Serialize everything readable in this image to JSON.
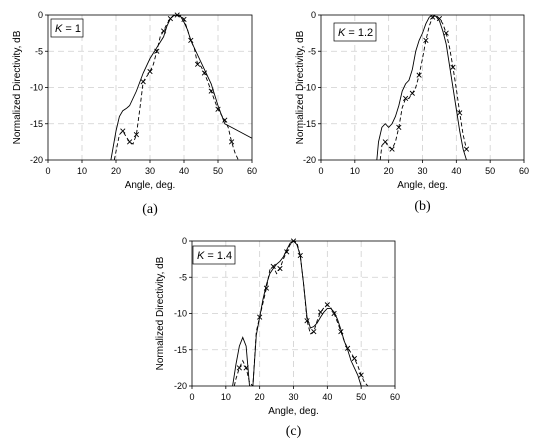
{
  "chart_data": [
    {
      "type": "line",
      "panel_label": "(a)",
      "annotation": {
        "var": "K",
        "rest": " = 1"
      },
      "xlabel": "Angle, deg.",
      "ylabel": "Normalized Directivity, dB",
      "xlim": [
        0,
        60
      ],
      "ylim": [
        -20,
        0
      ],
      "xticks": [
        "0",
        "10",
        "20",
        "30",
        "40",
        "50",
        "60"
      ],
      "yticks": [
        "0",
        "-5",
        "-10",
        "-15",
        "-20"
      ],
      "grid": true,
      "series": [
        {
          "style": "solid",
          "x": [
            18.5,
            20,
            21,
            22,
            23,
            24,
            26,
            28,
            30,
            32,
            34,
            35,
            36,
            37,
            38,
            39,
            40,
            41,
            42,
            43,
            44,
            45,
            46,
            47,
            48,
            49,
            50,
            52,
            54,
            56,
            58,
            60
          ],
          "y": [
            -20,
            -16,
            -14,
            -13.2,
            -12.9,
            -12.5,
            -10.5,
            -8,
            -6,
            -4.5,
            -3,
            -1.5,
            -0.5,
            0,
            -0.1,
            -0.2,
            -1,
            -2,
            -3.5,
            -4.5,
            -5.5,
            -6.5,
            -7.5,
            -8.5,
            -9.5,
            -11,
            -12.5,
            -15,
            -15.5,
            -16,
            -16.5,
            -17
          ]
        },
        {
          "style": "dashed",
          "marker": "x",
          "x": [
            19.5,
            21,
            22,
            23,
            24,
            25,
            26,
            27,
            28,
            29,
            30,
            31,
            32,
            33,
            34,
            35,
            36,
            37,
            38,
            39,
            40,
            41,
            42,
            43,
            44,
            45,
            46,
            47,
            48,
            49,
            50,
            51,
            52,
            53,
            54,
            55,
            56
          ],
          "y": [
            -20,
            -16.5,
            -16,
            -16.8,
            -17.5,
            -17.8,
            -16.5,
            -13,
            -9.2,
            -8.5,
            -7.8,
            -6.8,
            -5,
            -3,
            -2.2,
            -1.2,
            -0.5,
            -0.1,
            0,
            -0.1,
            -0.6,
            -2,
            -3.5,
            -4.5,
            -6.8,
            -7.1,
            -8,
            -9.2,
            -10.5,
            -11.8,
            -13,
            -13.8,
            -14.5,
            -15.5,
            -17.5,
            -19,
            -20
          ]
        }
      ]
    },
    {
      "type": "line",
      "panel_label": "(b)",
      "annotation": {
        "var": "K",
        "rest": " = 1.2"
      },
      "xlabel": "Angle, deg.",
      "ylabel": "Normalized Directivity, dB",
      "xlim": [
        0,
        60
      ],
      "ylim": [
        -20,
        0
      ],
      "xticks": [
        "0",
        "10",
        "20",
        "30",
        "40",
        "50",
        "60"
      ],
      "yticks": [
        "0",
        "-5",
        "-10",
        "-15",
        "-20"
      ],
      "grid": true,
      "series": [
        {
          "style": "solid",
          "x": [
            16.5,
            17,
            18,
            19,
            20,
            21,
            22,
            23,
            24,
            25,
            26,
            27,
            28,
            29,
            30,
            31,
            32,
            33,
            34,
            35,
            36,
            37,
            38,
            39,
            40,
            41,
            42,
            43
          ],
          "y": [
            -20,
            -17.5,
            -15.5,
            -15,
            -15.5,
            -15,
            -14,
            -12.5,
            -10.5,
            -9.5,
            -9,
            -7.5,
            -5,
            -3.5,
            -2.5,
            -1.2,
            -0.3,
            0,
            -0.2,
            -0.8,
            -2.2,
            -4,
            -7,
            -10,
            -13,
            -16,
            -18.5,
            -20
          ]
        },
        {
          "style": "dashed",
          "marker": "x",
          "x": [
            17.5,
            18,
            19,
            20,
            21,
            22,
            23,
            24,
            25,
            26,
            27,
            28,
            29,
            30,
            31,
            32,
            33,
            34,
            35,
            36,
            37,
            38,
            39,
            40,
            41,
            42,
            43
          ],
          "y": [
            -20,
            -18,
            -17.5,
            -18.2,
            -18.5,
            -17.5,
            -15.5,
            -12.8,
            -11.5,
            -11.5,
            -10.8,
            -10,
            -8.3,
            -6,
            -3.5,
            -1.5,
            -0.3,
            -0.1,
            -0.5,
            -1.2,
            -2.5,
            -4.5,
            -7.2,
            -10.2,
            -13.5,
            -16.5,
            -18.5
          ]
        }
      ]
    },
    {
      "type": "line",
      "panel_label": "(c)",
      "annotation": {
        "var": "K",
        "rest": " = 1.4"
      },
      "xlabel": "Angle, deg.",
      "ylabel": "Normalized Directivity, dB",
      "xlim": [
        0,
        60
      ],
      "ylim": [
        -20,
        0
      ],
      "xticks": [
        "0",
        "10",
        "20",
        "30",
        "40",
        "50",
        "60"
      ],
      "yticks": [
        "0",
        "-5",
        "-10",
        "-15",
        "-20"
      ],
      "grid": true,
      "series": [
        {
          "style": "solid",
          "x": [
            12,
            13,
            14,
            15,
            16,
            17,
            18,
            19,
            20,
            21,
            22,
            23,
            24,
            25,
            26,
            27,
            28,
            29,
            30,
            31,
            32,
            33,
            34,
            35,
            36,
            37,
            38,
            39,
            40,
            41,
            42,
            43,
            44,
            45,
            46,
            47,
            48,
            49,
            50,
            51
          ],
          "y": [
            -20,
            -17,
            -14.5,
            -13.3,
            -14.5,
            -20,
            -20,
            -13,
            -10.5,
            -8,
            -6,
            -4.5,
            -3.8,
            -3.2,
            -2.8,
            -2.2,
            -1.2,
            -0.3,
            0,
            -0.5,
            -2,
            -6,
            -10.5,
            -12,
            -11.8,
            -11.3,
            -10.5,
            -9.8,
            -9.3,
            -9.3,
            -9.8,
            -10.8,
            -12.2,
            -13.8,
            -15,
            -16.5,
            -17.5,
            -18.5,
            -20,
            -20
          ]
        },
        {
          "style": "dashed",
          "marker": "x",
          "x": [
            12.5,
            13,
            14,
            15,
            16,
            17,
            18,
            19,
            20,
            21,
            22,
            23,
            24,
            25,
            26,
            27,
            28,
            29,
            30,
            31,
            32,
            33,
            34,
            35,
            36,
            37,
            38,
            39,
            40,
            41,
            42,
            43,
            44,
            45,
            46,
            47,
            48,
            49,
            50,
            51,
            52
          ],
          "y": [
            -20,
            -19,
            -17.5,
            -16.5,
            -17.5,
            -19.5,
            -20,
            -12.5,
            -10.5,
            -8.5,
            -6.5,
            -4,
            -3.5,
            -4.5,
            -3.8,
            -2.5,
            -1.5,
            -0.5,
            0,
            -0.2,
            -2,
            -6,
            -11,
            -12.8,
            -12.5,
            -11,
            -9.8,
            -9.2,
            -8.8,
            -9.2,
            -10,
            -11.2,
            -12.5,
            -13.8,
            -14.8,
            -15.4,
            -16.2,
            -17.2,
            -18.5,
            -19.5,
            -20
          ]
        }
      ]
    }
  ]
}
